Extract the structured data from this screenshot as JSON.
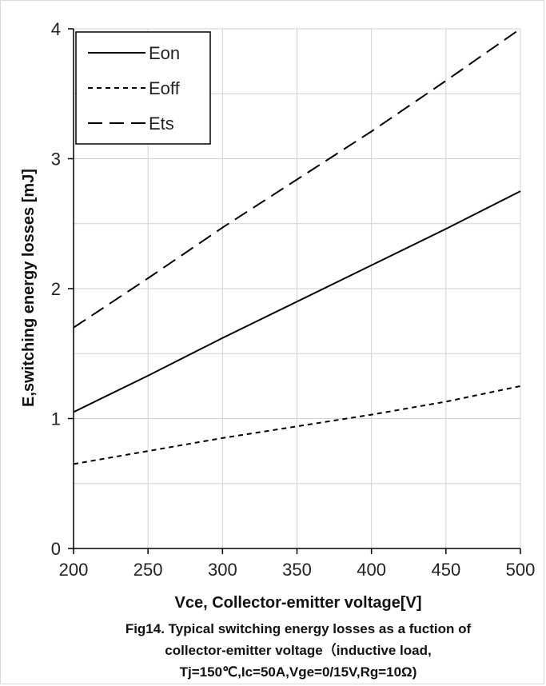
{
  "chart_data": {
    "type": "line",
    "xlabel": "Vce, Collector-emitter voltage[V]",
    "ylabel": "E,switching energy losses [mJ]",
    "xlim": [
      200,
      500
    ],
    "ylim": [
      0,
      4
    ],
    "xticks": [
      "200",
      "250",
      "300",
      "350",
      "400",
      "450",
      "500"
    ],
    "yticks": [
      "0",
      "1",
      "2",
      "3",
      "4"
    ],
    "grid": true,
    "legend": "top-left",
    "series": [
      {
        "name": "Eon",
        "style": "solid",
        "x": [
          200,
          250,
          300,
          350,
          400,
          450,
          500
        ],
        "y": [
          1.05,
          1.33,
          1.62,
          1.9,
          2.18,
          2.46,
          2.75
        ]
      },
      {
        "name": "Eoff",
        "style": "dotted",
        "x": [
          200,
          250,
          300,
          350,
          400,
          450,
          500
        ],
        "y": [
          0.65,
          0.75,
          0.85,
          0.94,
          1.03,
          1.13,
          1.25
        ]
      },
      {
        "name": "Ets",
        "style": "dashed",
        "x": [
          200,
          250,
          300,
          350,
          400,
          450,
          500
        ],
        "y": [
          1.7,
          2.08,
          2.47,
          2.84,
          3.21,
          3.6,
          4.0
        ]
      }
    ],
    "caption": [
      "Fig14. Typical switching energy losses as a fuction of",
      "collector-emitter voltage（inductive load,",
      "Tj=150℃,Ic=50A,Vge=0/15V,Rg=10Ω)"
    ]
  }
}
